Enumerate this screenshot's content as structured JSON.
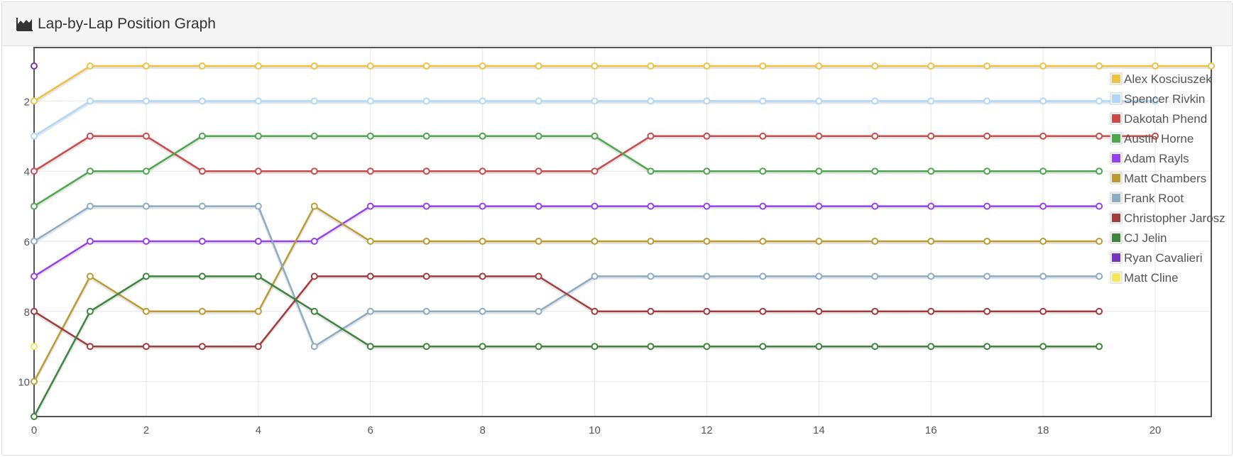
{
  "header": {
    "title": "Lap-by-Lap Position Graph",
    "icon": "area-chart-icon"
  },
  "chart_data": {
    "type": "line",
    "title": "",
    "xlabel": "",
    "ylabel": "",
    "xlim": [
      0,
      21
    ],
    "ylim": [
      11,
      1
    ],
    "y_reversed": true,
    "grid": true,
    "legend_position": "top-right",
    "x_ticks": [
      0,
      2,
      4,
      6,
      8,
      10,
      12,
      14,
      16,
      18,
      20
    ],
    "y_ticks": [
      2,
      4,
      6,
      8,
      10
    ],
    "series": [
      {
        "name": "Alex Kosciuszek",
        "color": "#edc240",
        "x": [
          0,
          1,
          2,
          3,
          4,
          5,
          6,
          7,
          8,
          9,
          10,
          11,
          12,
          13,
          14,
          15,
          16,
          17,
          18,
          19,
          20,
          21
        ],
        "y": [
          2,
          1,
          1,
          1,
          1,
          1,
          1,
          1,
          1,
          1,
          1,
          1,
          1,
          1,
          1,
          1,
          1,
          1,
          1,
          1,
          1,
          1
        ]
      },
      {
        "name": "Spencer Rivkin",
        "color": "#afd8f8",
        "x": [
          0,
          1,
          2,
          3,
          4,
          5,
          6,
          7,
          8,
          9,
          10,
          11,
          12,
          13,
          14,
          15,
          16,
          17,
          18,
          19,
          20
        ],
        "y": [
          3,
          2,
          2,
          2,
          2,
          2,
          2,
          2,
          2,
          2,
          2,
          2,
          2,
          2,
          2,
          2,
          2,
          2,
          2,
          2,
          2
        ]
      },
      {
        "name": "Dakotah Phend",
        "color": "#cb4b4b",
        "x": [
          0,
          1,
          2,
          3,
          4,
          5,
          6,
          7,
          8,
          9,
          10,
          11,
          12,
          13,
          14,
          15,
          16,
          17,
          18,
          19,
          20
        ],
        "y": [
          4,
          3,
          3,
          4,
          4,
          4,
          4,
          4,
          4,
          4,
          4,
          3,
          3,
          3,
          3,
          3,
          3,
          3,
          3,
          3,
          3
        ]
      },
      {
        "name": "Austin Horne",
        "color": "#4da74d",
        "x": [
          0,
          1,
          2,
          3,
          4,
          5,
          6,
          7,
          8,
          9,
          10,
          11,
          12,
          13,
          14,
          15,
          16,
          17,
          18,
          19
        ],
        "y": [
          5,
          4,
          4,
          3,
          3,
          3,
          3,
          3,
          3,
          3,
          3,
          4,
          4,
          4,
          4,
          4,
          4,
          4,
          4,
          4
        ]
      },
      {
        "name": "Adam Rayls",
        "color": "#9440ed",
        "x": [
          0,
          1,
          2,
          3,
          4,
          5,
          6,
          7,
          8,
          9,
          10,
          11,
          12,
          13,
          14,
          15,
          16,
          17,
          18,
          19
        ],
        "y": [
          7,
          6,
          6,
          6,
          6,
          6,
          5,
          5,
          5,
          5,
          5,
          5,
          5,
          5,
          5,
          5,
          5,
          5,
          5,
          5
        ]
      },
      {
        "name": "Matt Chambers",
        "color": "#bd9b33",
        "x": [
          0,
          1,
          2,
          3,
          4,
          5,
          6,
          7,
          8,
          9,
          10,
          11,
          12,
          13,
          14,
          15,
          16,
          17,
          18,
          19
        ],
        "y": [
          10,
          7,
          8,
          8,
          8,
          5,
          6,
          6,
          6,
          6,
          6,
          6,
          6,
          6,
          6,
          6,
          6,
          6,
          6,
          6
        ]
      },
      {
        "name": "Frank Root",
        "color": "#8cacc6",
        "x": [
          0,
          1,
          2,
          3,
          4,
          5,
          6,
          7,
          8,
          9,
          10,
          11,
          12,
          13,
          14,
          15,
          16,
          17,
          18,
          19
        ],
        "y": [
          6,
          5,
          5,
          5,
          5,
          9,
          8,
          8,
          8,
          8,
          7,
          7,
          7,
          7,
          7,
          7,
          7,
          7,
          7,
          7
        ]
      },
      {
        "name": "Christopher Jarosz",
        "color": "#a23c3c",
        "x": [
          0,
          1,
          2,
          3,
          4,
          5,
          6,
          7,
          8,
          9,
          10,
          11,
          12,
          13,
          14,
          15,
          16,
          17,
          18,
          19
        ],
        "y": [
          8,
          9,
          9,
          9,
          9,
          7,
          7,
          7,
          7,
          7,
          8,
          8,
          8,
          8,
          8,
          8,
          8,
          8,
          8,
          8
        ]
      },
      {
        "name": "CJ Jelin",
        "color": "#3d853d",
        "x": [
          0,
          1,
          2,
          3,
          4,
          5,
          6,
          7,
          8,
          9,
          10,
          11,
          12,
          13,
          14,
          15,
          16,
          17,
          18,
          19
        ],
        "y": [
          11,
          8,
          7,
          7,
          7,
          8,
          9,
          9,
          9,
          9,
          9,
          9,
          9,
          9,
          9,
          9,
          9,
          9,
          9,
          9
        ]
      },
      {
        "name": "Ryan Cavalieri",
        "color": "#7633bd",
        "x": [
          0
        ],
        "y": [
          1
        ]
      },
      {
        "name": "Matt Cline",
        "color": "#f6e75b",
        "x": [
          0
        ],
        "y": [
          9
        ]
      }
    ]
  }
}
